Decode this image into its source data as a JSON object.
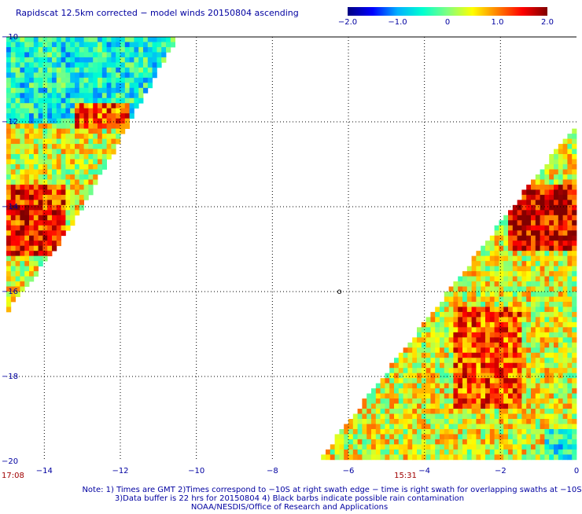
{
  "chart_data": {
    "type": "heatmap",
    "title": "Rapidscat 12.5km corrected − model winds 20150804 ascending",
    "colorbar": {
      "range": [
        -2.0,
        2.0
      ],
      "tick_labels": [
        "−2.0",
        "−1.0",
        "0",
        "1.0",
        "2.0"
      ],
      "tick_values": [
        -2.0,
        -1.0,
        0.0,
        1.0,
        2.0
      ],
      "placement": "top-right"
    },
    "x_axis": {
      "range": [
        -15,
        0
      ],
      "tick_values": [
        -14,
        -12,
        -10,
        -8,
        -6,
        -4,
        -2,
        0
      ],
      "tick_labels": [
        "−14",
        "−12",
        "−10",
        "−8",
        "−6",
        "−4",
        "−2",
        "0"
      ]
    },
    "y_axis": {
      "range": [
        -20,
        -10
      ],
      "tick_values": [
        -10,
        -12,
        -14,
        -16,
        -18,
        -20
      ],
      "tick_labels": [
        "−10",
        "−12",
        "−14",
        "−16",
        "−18",
        "−20"
      ]
    },
    "grid": true,
    "swaths": [
      {
        "time_label": "17:08",
        "time_x": -15,
        "polygon": [
          [
            -15,
            -10
          ],
          [
            -10.5,
            -10
          ],
          [
            -13.3,
            -14.5
          ],
          [
            -15,
            -16.5
          ]
        ],
        "regions": [
          {
            "lon": [
              -15,
              -10.5
            ],
            "lat": [
              -12,
              -10
            ],
            "value": -0.5
          },
          {
            "lon": [
              -13.2,
              -11.8
            ],
            "lat": [
              -12.2,
              -11.6
            ],
            "value": 1.2
          },
          {
            "lon": [
              -15,
              -13.4
            ],
            "lat": [
              -15.2,
              -13.5
            ],
            "value": 1.4
          }
        ]
      },
      {
        "time_label": "15:31",
        "time_x": -4.5,
        "polygon": [
          [
            -0.05,
            -12.1
          ],
          [
            0,
            -20
          ],
          [
            -6.8,
            -20
          ]
        ],
        "regions": [
          {
            "lon": [
              -1.8,
              0
            ],
            "lat": [
              -15,
              -13.5
            ],
            "value": 1.6
          },
          {
            "lon": [
              -1,
              -0.2
            ],
            "lat": [
              -14.2,
              -13.7
            ],
            "value": 2.0
          },
          {
            "lon": [
              -3.2,
              -1.4
            ],
            "lat": [
              -18.7,
              -16.3
            ],
            "value": 1.2
          },
          {
            "lon": [
              -0.8,
              0
            ],
            "lat": [
              -20,
              -19.2
            ],
            "value": -0.5
          }
        ]
      }
    ],
    "annotation_symbol": {
      "x": -6.3,
      "y": -16.0,
      "glyph": "o"
    },
    "notes": [
      "Note: 1) Times are GMT 2)Times correspond to −10S at right swath edge − time is right swath for overlapping swaths at −10S",
      "3)Data buffer is 22 hrs for 20150804 4) Black barbs indicate possible rain contamination",
      "NOAA/NESDIS/Office of Research and Applications"
    ],
    "colors": {
      "title": "#0000a0",
      "ticks": "#0000a0",
      "time_label": "#a00000",
      "grid": "#000000",
      "colorscale": [
        "#000080",
        "#0000ff",
        "#00b0ff",
        "#00ffd0",
        "#80ff80",
        "#ffff00",
        "#ff8000",
        "#ff0000",
        "#800000"
      ]
    }
  }
}
